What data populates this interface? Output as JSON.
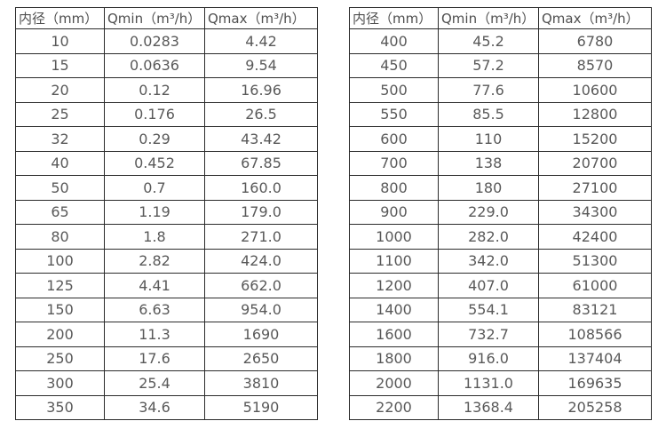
{
  "page": {
    "background_color": "#ffffff",
    "border_color": "#2b2b2b",
    "text_color": "#595959"
  },
  "tables": [
    {
      "name": "flow-table-small-diameters",
      "headers": [
        "内径（mm）",
        "Qmin（m³/h）",
        "Qmax（m³/h）"
      ],
      "rows": [
        [
          "10",
          "0.0283",
          "4.42"
        ],
        [
          "15",
          "0.0636",
          "9.54"
        ],
        [
          "20",
          "0.12",
          "16.96"
        ],
        [
          "25",
          "0.176",
          "26.5"
        ],
        [
          "32",
          "0.29",
          "43.42"
        ],
        [
          "40",
          "0.452",
          "67.85"
        ],
        [
          "50",
          "0.7",
          "160.0"
        ],
        [
          "65",
          "1.19",
          "179.0"
        ],
        [
          "80",
          "1.8",
          "271.0"
        ],
        [
          "100",
          "2.82",
          "424.0"
        ],
        [
          "125",
          "4.41",
          "662.0"
        ],
        [
          "150",
          "6.63",
          "954.0"
        ],
        [
          "200",
          "11.3",
          "1690"
        ],
        [
          "250",
          "17.6",
          "2650"
        ],
        [
          "300",
          "25.4",
          "3810"
        ],
        [
          "350",
          "34.6",
          "5190"
        ]
      ]
    },
    {
      "name": "flow-table-large-diameters",
      "headers": [
        "内径（mm）",
        "Qmin（m³/h）",
        "Qmax（m³/h）"
      ],
      "rows": [
        [
          "400",
          "45.2",
          "6780"
        ],
        [
          "450",
          "57.2",
          "8570"
        ],
        [
          "500",
          "77.6",
          "10600"
        ],
        [
          "550",
          "85.5",
          "12800"
        ],
        [
          "600",
          "110",
          "15200"
        ],
        [
          "700",
          "138",
          "20700"
        ],
        [
          "800",
          "180",
          "27100"
        ],
        [
          "900",
          "229.0",
          "34300"
        ],
        [
          "1000",
          "282.0",
          "42400"
        ],
        [
          "1100",
          "342.0",
          "51300"
        ],
        [
          "1200",
          "407.0",
          "61000"
        ],
        [
          "1400",
          "554.1",
          "83121"
        ],
        [
          "1600",
          "732.7",
          "108566"
        ],
        [
          "1800",
          "916.0",
          "137404"
        ],
        [
          "2000",
          "1131.0",
          "169635"
        ],
        [
          "2200",
          "1368.4",
          "205258"
        ]
      ]
    }
  ]
}
